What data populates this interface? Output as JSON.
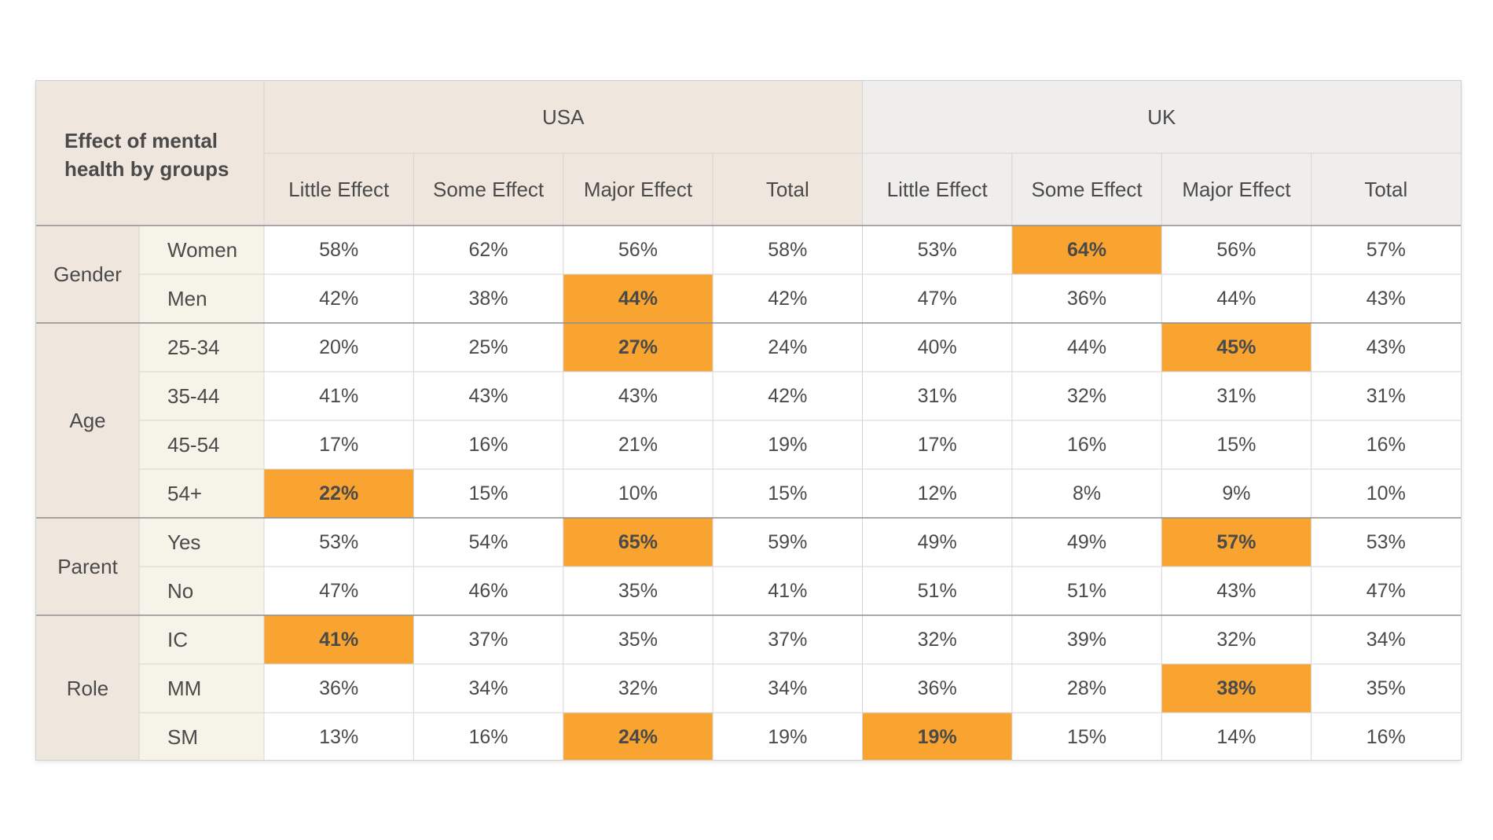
{
  "chart_data": {
    "type": "table",
    "title": "Effect of mental health by groups",
    "column_groups": [
      "USA",
      "UK"
    ],
    "columns": [
      "Little Effect",
      "Some Effect",
      "Major Effect",
      "Total"
    ],
    "groups": [
      {
        "name": "Gender",
        "rows": [
          {
            "label": "Women",
            "usa": [
              "58%",
              "62%",
              "56%",
              "58%"
            ],
            "uk": [
              "53%",
              "64%",
              "56%",
              "57%"
            ],
            "highlight_usa": -1,
            "highlight_uk": 1
          },
          {
            "label": "Men",
            "usa": [
              "42%",
              "38%",
              "44%",
              "42%"
            ],
            "uk": [
              "47%",
              "36%",
              "44%",
              "43%"
            ],
            "highlight_usa": 2,
            "highlight_uk": -1
          }
        ]
      },
      {
        "name": "Age",
        "rows": [
          {
            "label": "25-34",
            "usa": [
              "20%",
              "25%",
              "27%",
              "24%"
            ],
            "uk": [
              "40%",
              "44%",
              "45%",
              "43%"
            ],
            "highlight_usa": 2,
            "highlight_uk": 2
          },
          {
            "label": "35-44",
            "usa": [
              "41%",
              "43%",
              "43%",
              "42%"
            ],
            "uk": [
              "31%",
              "32%",
              "31%",
              "31%"
            ],
            "highlight_usa": -1,
            "highlight_uk": -1
          },
          {
            "label": "45-54",
            "usa": [
              "17%",
              "16%",
              "21%",
              "19%"
            ],
            "uk": [
              "17%",
              "16%",
              "15%",
              "16%"
            ],
            "highlight_usa": -1,
            "highlight_uk": -1
          },
          {
            "label": "54+",
            "usa": [
              "22%",
              "15%",
              "10%",
              "15%"
            ],
            "uk": [
              "12%",
              "8%",
              "9%",
              "10%"
            ],
            "highlight_usa": 0,
            "highlight_uk": -1
          }
        ]
      },
      {
        "name": "Parent",
        "rows": [
          {
            "label": "Yes",
            "usa": [
              "53%",
              "54%",
              "65%",
              "59%"
            ],
            "uk": [
              "49%",
              "49%",
              "57%",
              "53%"
            ],
            "highlight_usa": 2,
            "highlight_uk": 2
          },
          {
            "label": "No",
            "usa": [
              "47%",
              "46%",
              "35%",
              "41%"
            ],
            "uk": [
              "51%",
              "51%",
              "43%",
              "47%"
            ],
            "highlight_usa": -1,
            "highlight_uk": -1
          }
        ]
      },
      {
        "name": "Role",
        "rows": [
          {
            "label": "IC",
            "usa": [
              "41%",
              "37%",
              "35%",
              "37%"
            ],
            "uk": [
              "32%",
              "39%",
              "32%",
              "34%"
            ],
            "highlight_usa": 0,
            "highlight_uk": -1
          },
          {
            "label": "MM",
            "usa": [
              "36%",
              "34%",
              "32%",
              "34%"
            ],
            "uk": [
              "36%",
              "28%",
              "38%",
              "35%"
            ],
            "highlight_usa": -1,
            "highlight_uk": 2
          },
          {
            "label": "SM",
            "usa": [
              "13%",
              "16%",
              "24%",
              "19%"
            ],
            "uk": [
              "19%",
              "15%",
              "14%",
              "16%"
            ],
            "highlight_usa": 2,
            "highlight_uk": 0
          }
        ]
      }
    ]
  },
  "colors": {
    "usa_header_bg": "#EFE7DE",
    "uk_header_bg": "#EFEEED",
    "group_col_bg": "#EFE7DE",
    "row_label_bg": "#F6F3E8",
    "highlight": "#F9A330",
    "grid": "#D4D4D4",
    "group_divider": "#8F8F8F",
    "text": "#4A4A4A"
  }
}
